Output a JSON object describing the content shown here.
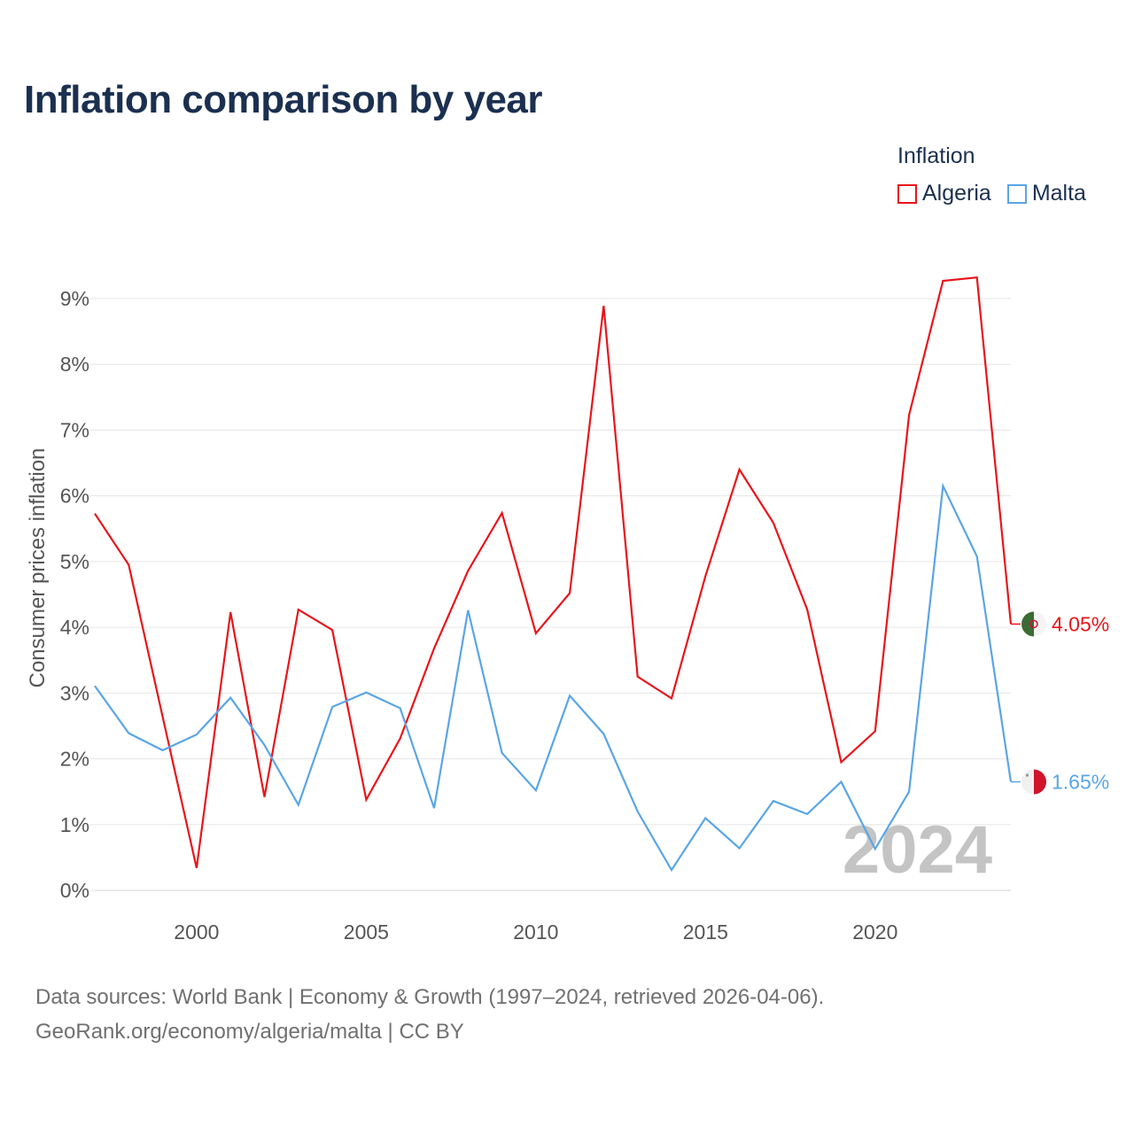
{
  "title": "Inflation comparison by year",
  "legend": {
    "title": "Inflation",
    "items": [
      {
        "label": "Algeria",
        "color": "#e8151b"
      },
      {
        "label": "Malta",
        "color": "#5aa5e6"
      }
    ]
  },
  "footer": {
    "line1": "Data sources: World Bank | Economy & Growth (1997–2024, retrieved 2026-04-06).",
    "line2": "GeoRank.org/economy/algeria/malta | CC BY"
  },
  "chart_data": {
    "type": "line",
    "title": "Inflation comparison by year",
    "xlabel": "",
    "ylabel": "Consumer prices inflation",
    "x": [
      1997,
      1998,
      1999,
      2000,
      2001,
      2002,
      2003,
      2004,
      2005,
      2006,
      2007,
      2008,
      2009,
      2010,
      2011,
      2012,
      2013,
      2014,
      2015,
      2016,
      2017,
      2018,
      2019,
      2020,
      2021,
      2022,
      2023,
      2024
    ],
    "xlim": [
      1997,
      2024
    ],
    "ylim": [
      0,
      9
    ],
    "xticks": [
      2000,
      2005,
      2010,
      2015,
      2020
    ],
    "yticks": [
      0,
      1,
      2,
      3,
      4,
      5,
      6,
      7,
      8,
      9
    ],
    "ytick_labels": [
      "0%",
      "1%",
      "2%",
      "3%",
      "4%",
      "5%",
      "6%",
      "7%",
      "8%",
      "9%"
    ],
    "grid": true,
    "watermark": "2024",
    "series": [
      {
        "name": "Algeria",
        "color": "#e8151b",
        "end_label": "4.05%",
        "values": [
          5.73,
          4.95,
          2.64,
          0.34,
          4.23,
          1.42,
          4.27,
          3.96,
          1.38,
          2.31,
          3.68,
          4.86,
          5.74,
          3.91,
          4.52,
          8.89,
          3.25,
          2.92,
          4.78,
          6.4,
          5.59,
          4.27,
          1.95,
          2.42,
          7.23,
          9.27,
          9.32,
          4.05
        ]
      },
      {
        "name": "Malta",
        "color": "#5aa5e6",
        "end_label": "1.65%",
        "values": [
          3.11,
          2.39,
          2.13,
          2.37,
          2.93,
          2.21,
          1.3,
          2.79,
          3.01,
          2.77,
          1.25,
          4.26,
          2.09,
          1.52,
          2.96,
          2.38,
          1.2,
          0.31,
          1.1,
          0.64,
          1.36,
          1.16,
          1.65,
          0.63,
          1.5,
          6.15,
          5.08,
          1.65
        ]
      }
    ]
  }
}
